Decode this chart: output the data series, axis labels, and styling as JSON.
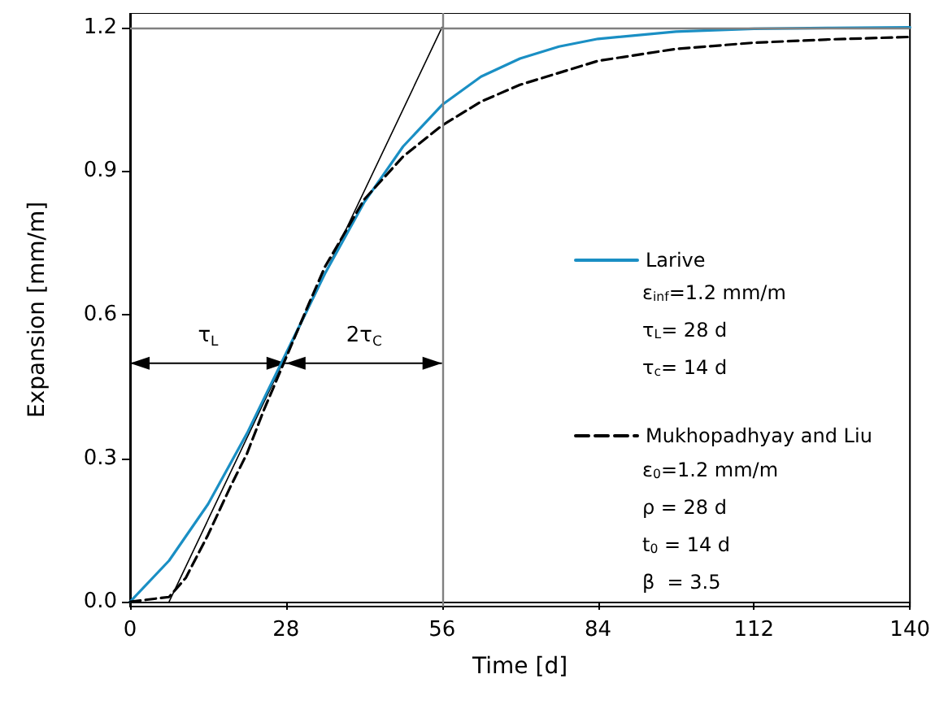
{
  "chart_data": {
    "type": "line",
    "xlabel": "Time [d]",
    "ylabel": "Expansion [mm/m]",
    "xlim": [
      0,
      140
    ],
    "xticks": [
      0,
      28,
      56,
      84,
      112,
      140
    ],
    "ylim": [
      -0.01,
      1.23
    ],
    "yticks": [
      {
        "value": 0,
        "label": "0.0"
      },
      0.3,
      0.6,
      0.9,
      1.2
    ],
    "series": [
      {
        "name": "Larive",
        "color": "#1a8fc4",
        "line_style": "solid",
        "x": [
          0,
          7,
          14,
          21,
          28,
          35,
          42,
          49,
          56,
          63,
          70,
          77,
          84,
          98,
          112,
          126,
          140
        ],
        "values": [
          0,
          0.086,
          0.204,
          0.352,
          0.519,
          0.686,
          0.834,
          0.951,
          1.038,
          1.097,
          1.135,
          1.16,
          1.176,
          1.191,
          1.197,
          1.199,
          1.2
        ]
      },
      {
        "name": "Mukhopadhyay and Liu",
        "color": "#000000",
        "line_style": "dashed",
        "x": [
          0,
          7,
          10,
          14,
          18,
          21,
          24,
          28,
          32,
          35,
          42,
          49,
          56,
          63,
          70,
          84,
          98,
          112,
          126,
          140
        ],
        "values": [
          0,
          0.01,
          0.05,
          0.14,
          0.24,
          0.31,
          0.4,
          0.51,
          0.62,
          0.7,
          0.84,
          0.93,
          0.995,
          1.045,
          1.08,
          1.13,
          1.155,
          1.168,
          1.175,
          1.18
        ]
      },
      {
        "color": "#000000",
        "line_style": "solid",
        "x": [
          7,
          56
        ],
        "values": [
          0,
          1.2
        ]
      }
    ],
    "ref_lines": [
      {
        "axis": "y",
        "value": 1.2,
        "color": "#808080"
      },
      {
        "axis": "x",
        "value": 56,
        "color": "#808080"
      }
    ],
    "annotations": [
      "τ$_{L}$",
      "2τ$_{C}$",
      "ε$_{inf}$=1.2 mm/m",
      "τ$_{L}$= 28 d",
      "τ$_{c}$= 14 d",
      "ε$_{0}$=1.2 mm/m",
      "ρ = 28 d",
      "t$_{0}$ = 14 d",
      "β  = 3.5"
    ],
    "legend": "right",
    "grid": false,
    "marker": "none"
  }
}
